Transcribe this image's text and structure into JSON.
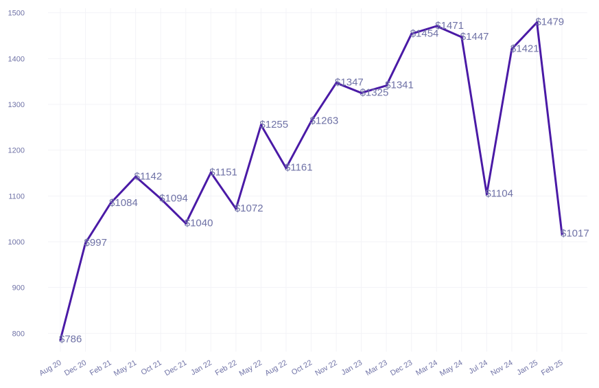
{
  "chart_data": {
    "type": "line",
    "categories": [
      "Aug 20",
      "Dec 20",
      "Feb 21",
      "May 21",
      "Oct 21",
      "Dec 21",
      "Jan 22",
      "Feb 22",
      "May 22",
      "Aug 22",
      "Oct 22",
      "Nov 22",
      "Jan 23",
      "Mar 23",
      "Dec 23",
      "Mar 24",
      "May 24",
      "Jul 24",
      "Nov 24",
      "Jan 25",
      "Feb 25"
    ],
    "values": [
      786,
      997,
      1084,
      1142,
      1094,
      1040,
      1151,
      1072,
      1255,
      1161,
      1263,
      1347,
      1325,
      1341,
      1454,
      1471,
      1447,
      1104,
      1421,
      1479,
      1017
    ],
    "data_labels": [
      "$786",
      "$997",
      "$1084",
      "$1142",
      "$1094",
      "$1040",
      "$1151",
      "$1072",
      "$1255",
      "$1161",
      "$1263",
      "$1347",
      "$1325",
      "$1341",
      "$1454",
      "$1471",
      "$1447",
      "$1104",
      "$1421",
      "$1479",
      "$1017"
    ],
    "yticks": [
      800,
      900,
      1000,
      1100,
      1200,
      1300,
      1400,
      1500
    ],
    "ylim": [
      760,
      1510
    ],
    "grid": true,
    "legend": "none",
    "title": "",
    "xlabel": "",
    "ylabel": "",
    "colors": {
      "line": "#4a1aa6",
      "text": "#6f72a6",
      "grid": "#f3f3f7"
    }
  }
}
